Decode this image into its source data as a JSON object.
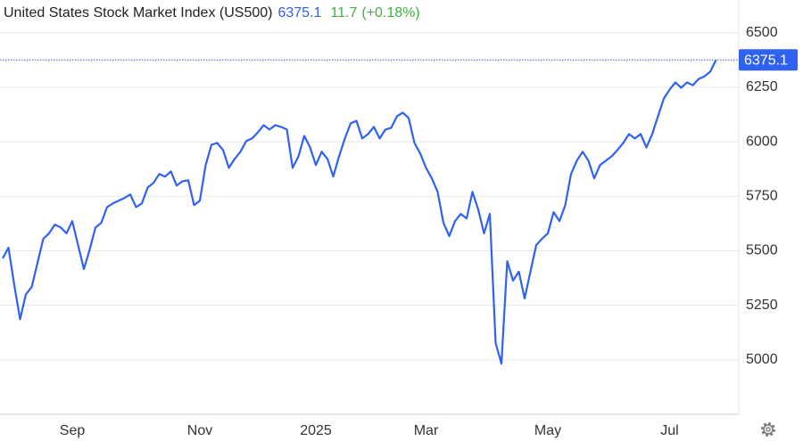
{
  "chart_data": {
    "type": "line",
    "title": "United States Stock Market Index (US500)",
    "change": 11.7,
    "change_percent": {
      "value": 0.18,
      "label": "(+0.18%)"
    },
    "categories": [
      null,
      null,
      null,
      null,
      null,
      null,
      null,
      null,
      null,
      null,
      null,
      null,
      "Sep",
      null,
      null,
      null,
      null,
      null,
      null,
      null,
      null,
      null,
      null,
      null,
      null,
      null,
      null,
      null,
      null,
      null,
      null,
      null,
      null,
      null,
      "Nov",
      null,
      null,
      null,
      null,
      null,
      null,
      null,
      null,
      null,
      null,
      null,
      null,
      null,
      null,
      null,
      null,
      null,
      null,
      null,
      "2025",
      null,
      null,
      null,
      null,
      null,
      null,
      null,
      null,
      null,
      null,
      null,
      null,
      null,
      null,
      null,
      null,
      null,
      null,
      "Mar",
      null,
      null,
      null,
      null,
      null,
      null,
      null,
      null,
      null,
      null,
      null,
      null,
      null,
      null,
      null,
      null,
      null,
      null,
      null,
      null,
      "May",
      null,
      null,
      null,
      null,
      null,
      null,
      null,
      null,
      null,
      null,
      null,
      null,
      null,
      null,
      null,
      null,
      null,
      null,
      null,
      null,
      "Jul",
      null,
      null,
      null,
      null,
      null,
      null,
      null,
      null
    ],
    "series": [
      {
        "name": "US500",
        "color": "#2f62f0",
        "values": [
          5465,
          5514,
          5342,
          5186,
          5300,
          5334,
          5444,
          5555,
          5580,
          5620,
          5607,
          5580,
          5636,
          5526,
          5416,
          5505,
          5607,
          5628,
          5700,
          5717,
          5730,
          5742,
          5758,
          5700,
          5717,
          5790,
          5811,
          5852,
          5840,
          5864,
          5799,
          5819,
          5823,
          5709,
          5730,
          5893,
          5986,
          5994,
          5962,
          5880,
          5921,
          5954,
          6003,
          6015,
          6043,
          6076,
          6056,
          6076,
          6068,
          6056,
          5880,
          5933,
          6027,
          5974,
          5893,
          5954,
          5921,
          5840,
          5933,
          6015,
          6084,
          6096,
          6015,
          6035,
          6068,
          6015,
          6056,
          6064,
          6117,
          6133,
          6109,
          5994,
          5946,
          5880,
          5832,
          5770,
          5628,
          5567,
          5636,
          5669,
          5648,
          5770,
          5689,
          5580,
          5669,
          5077,
          4982,
          5452,
          5363,
          5404,
          5281,
          5404,
          5526,
          5555,
          5580,
          5677,
          5636,
          5709,
          5852,
          5913,
          5954,
          5913,
          5832,
          5893,
          5913,
          5933,
          5962,
          5994,
          6035,
          6015,
          6035,
          5974,
          6035,
          6117,
          6198,
          6239,
          6272,
          6247,
          6272,
          6259,
          6288,
          6300,
          6321,
          6375.1
        ]
      }
    ],
    "ylim": [
      4750,
      6650
    ],
    "yticks": [
      5000,
      5250,
      5500,
      5750,
      6000,
      6250,
      6500
    ],
    "grid": true
  }
}
